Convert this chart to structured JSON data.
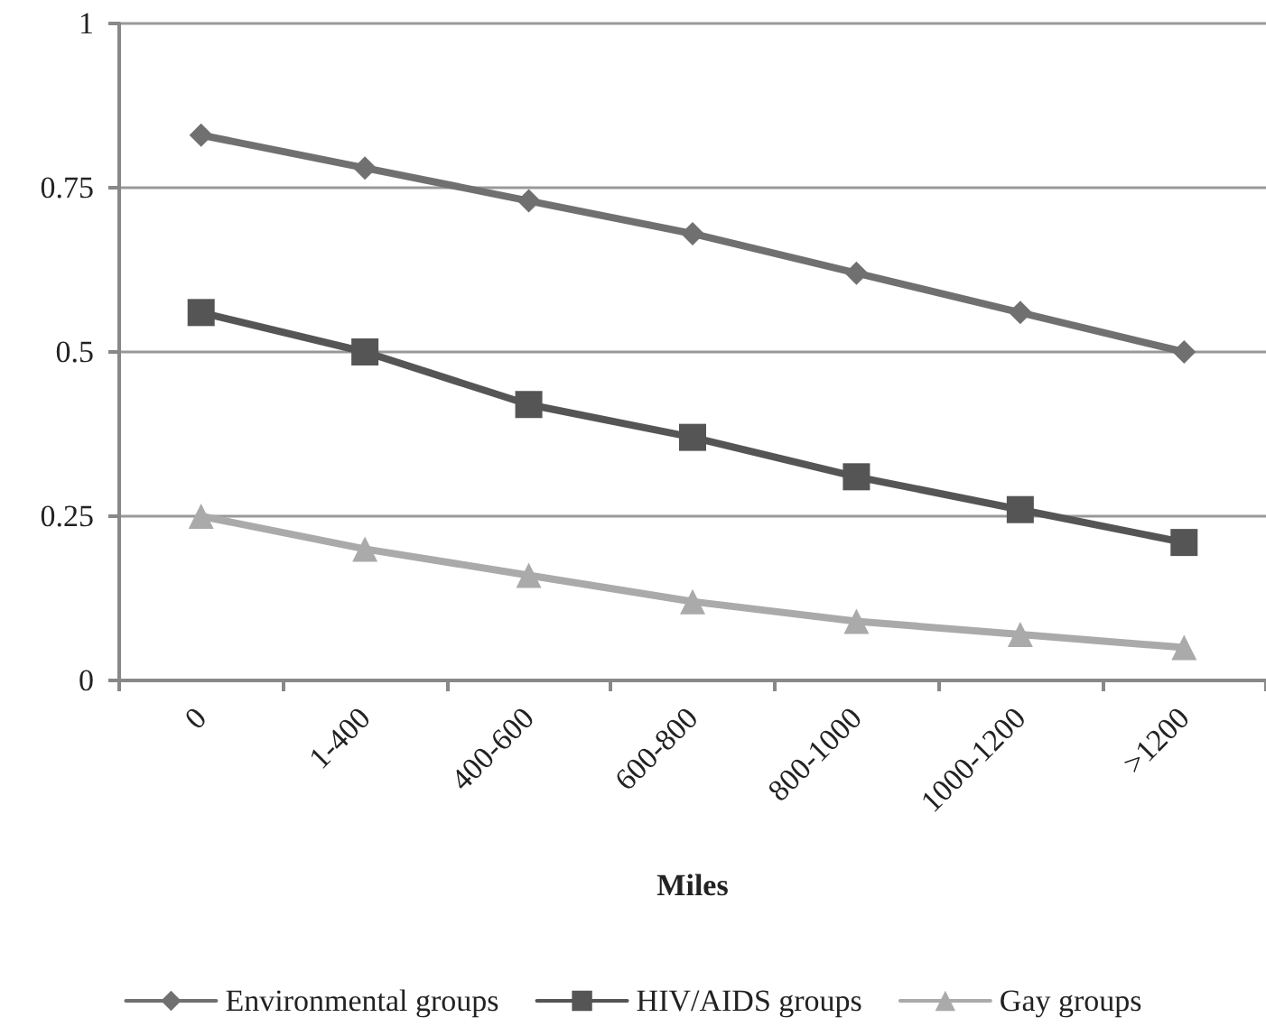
{
  "chart_data": {
    "type": "line",
    "xlabel": "Miles",
    "categories": [
      "0",
      "1-400",
      "400-600",
      "600-800",
      "800-1000",
      "1000-1200",
      ">1200"
    ],
    "series": [
      {
        "name": "Environmental groups",
        "color": "#707070",
        "marker": "diamond",
        "values": [
          0.83,
          0.78,
          0.73,
          0.68,
          0.62,
          0.56,
          0.5
        ]
      },
      {
        "name": "HIV/AIDS groups",
        "color": "#555555",
        "marker": "square",
        "values": [
          0.56,
          0.5,
          0.42,
          0.37,
          0.31,
          0.26,
          0.21
        ]
      },
      {
        "name": "Gay groups",
        "color": "#aaaaaa",
        "marker": "triangle",
        "values": [
          0.25,
          0.2,
          0.16,
          0.12,
          0.09,
          0.07,
          0.05
        ]
      }
    ],
    "ylim": [
      0,
      1
    ],
    "yticks": [
      0,
      0.25,
      0.5,
      0.75,
      1
    ],
    "grid": "y",
    "legend": "bottom",
    "line_style": "solid"
  }
}
